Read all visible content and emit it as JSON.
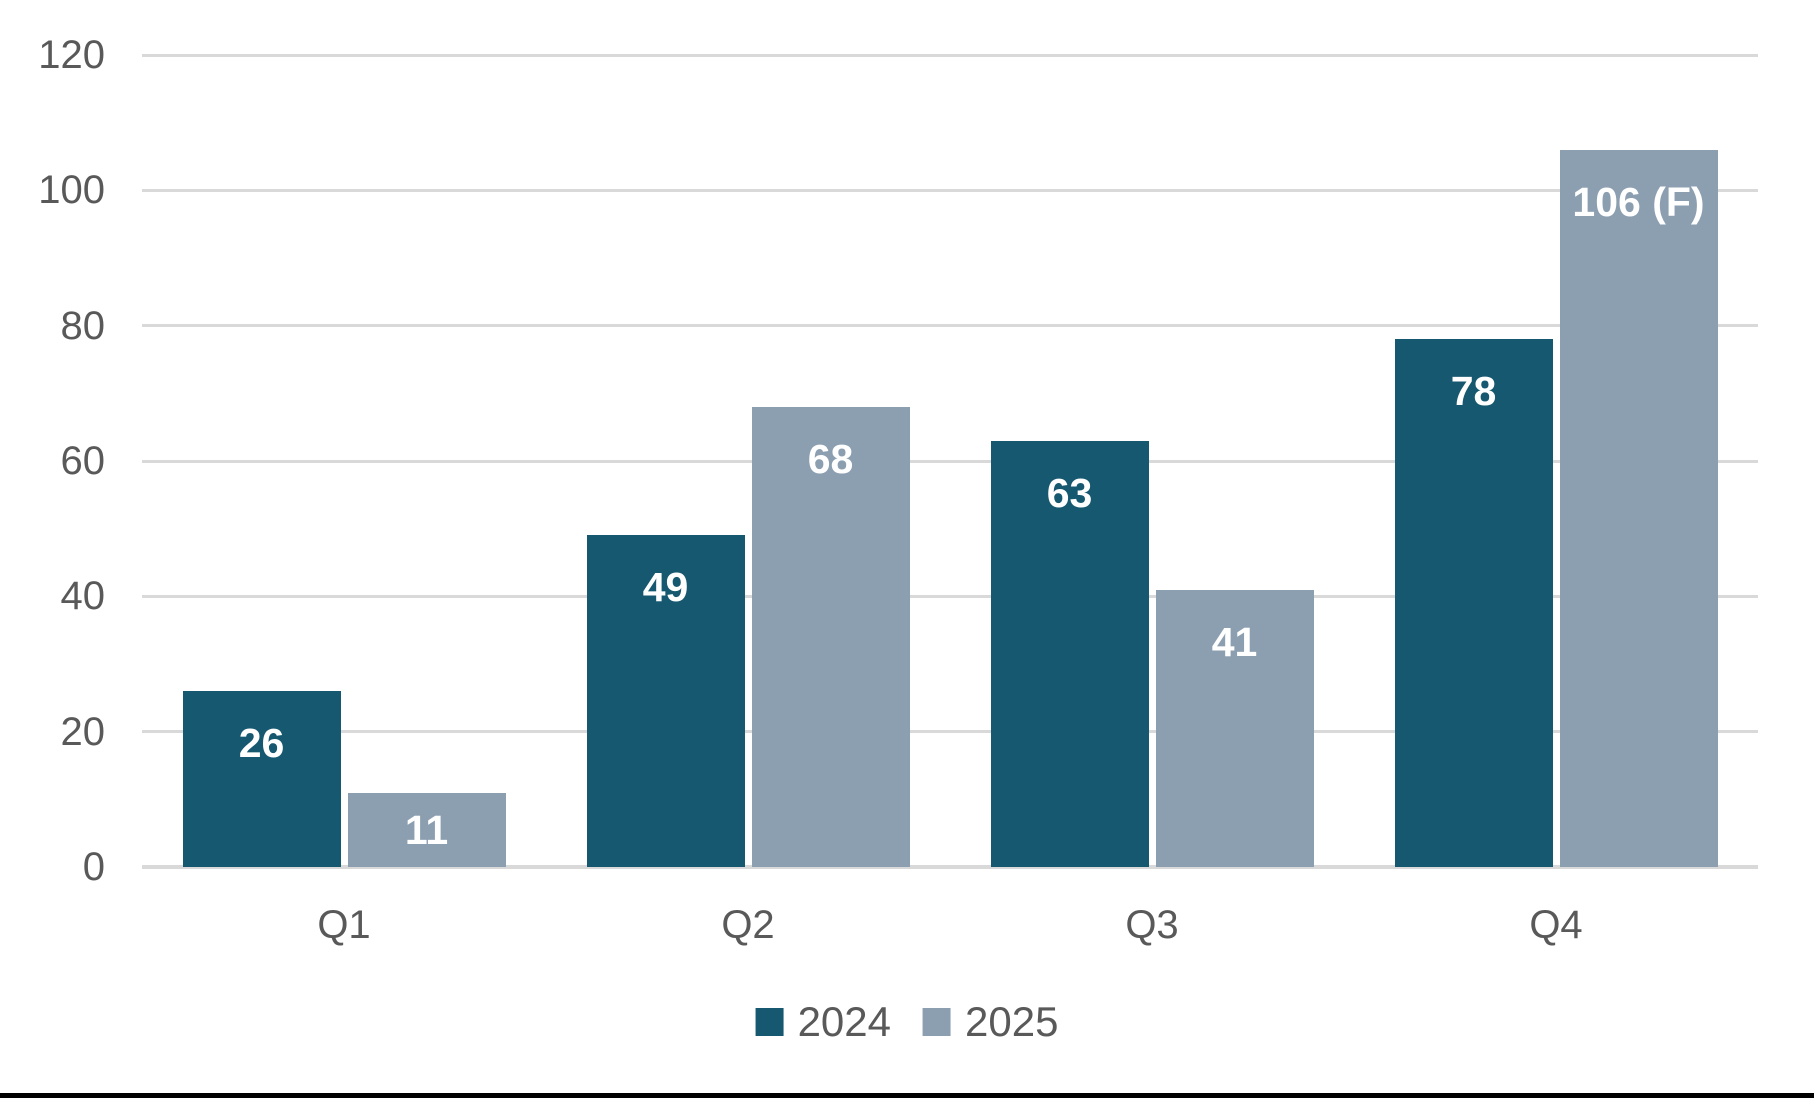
{
  "chart_data": {
    "type": "bar",
    "title": "",
    "xlabel": "",
    "ylabel": "",
    "categories": [
      "Q1",
      "Q2",
      "Q3",
      "Q4"
    ],
    "series": [
      {
        "name": "2024",
        "color": "#15586F",
        "values": [
          26,
          49,
          63,
          78
        ],
        "data_labels": [
          "26",
          "49",
          "63",
          "78"
        ]
      },
      {
        "name": "2025",
        "color": "#8C9FB1",
        "values": [
          11,
          68,
          41,
          106
        ],
        "data_labels": [
          "11",
          "68",
          "41",
          "106 (F)"
        ]
      }
    ],
    "ylim": [
      0,
      120
    ],
    "yticks": [
      0,
      20,
      40,
      60,
      80,
      100,
      120
    ],
    "grid": true,
    "legend_position": "bottom",
    "colors": {
      "gridline": "#D9D9D9",
      "axis_text": "#595959",
      "data_label_text": "#FFFFFF",
      "bottom_border": "#000000",
      "background": "#FFFFFF"
    }
  }
}
